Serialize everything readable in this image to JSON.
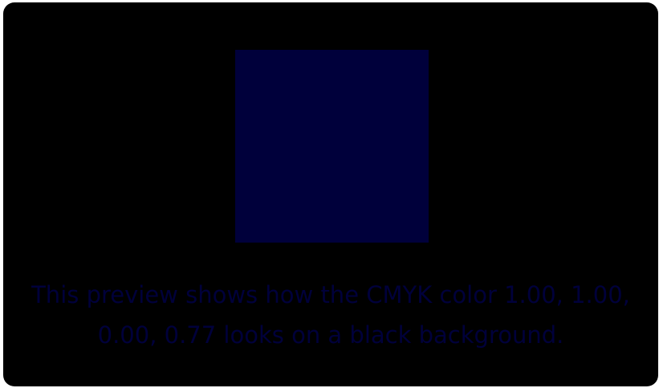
{
  "preview": {
    "swatch_color": "#00003b",
    "caption_color": "#00003b",
    "background_color": "#000000",
    "caption": "This preview shows how the CMYK color 1.00, 1.00, 0.00, 0.77 looks on a black background."
  }
}
